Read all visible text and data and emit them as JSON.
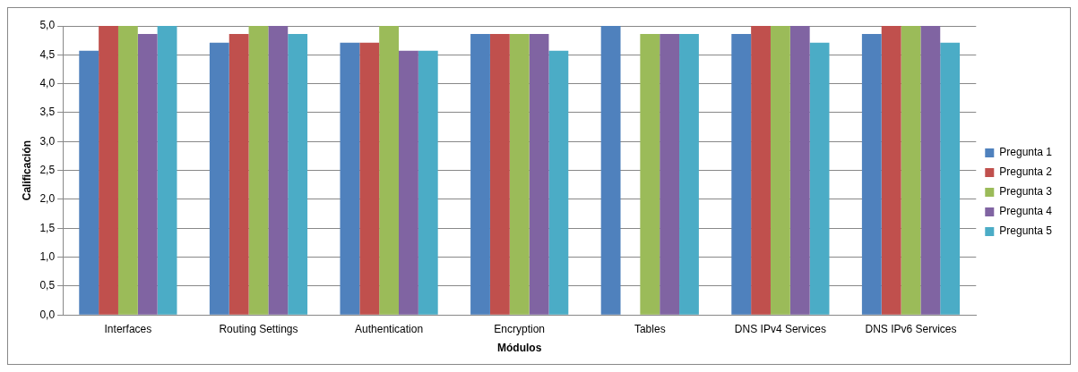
{
  "chart_data": {
    "type": "bar",
    "xlabel": "Módulos",
    "ylabel": "Calificación",
    "categories": [
      "Interfaces",
      "Routing Settings",
      "Authentication",
      "Encryption",
      "Tables",
      "DNS IPv4 Services",
      "DNS IPv6 Services"
    ],
    "series": [
      {
        "name": "Pregunta 1",
        "color": "#4f81bd",
        "values": [
          4.57,
          4.71,
          4.71,
          4.86,
          5,
          4.86,
          4.86
        ]
      },
      {
        "name": "Pregunta 2",
        "color": "#c0504d",
        "values": [
          5,
          4.86,
          4.71,
          4.86,
          null,
          5,
          5
        ]
      },
      {
        "name": "Pregunta 3",
        "color": "#9bbb59",
        "values": [
          5,
          5,
          5,
          4.86,
          4.86,
          5,
          5
        ]
      },
      {
        "name": "Pregunta 4",
        "color": "#8064a2",
        "values": [
          4.86,
          5,
          4.57,
          4.86,
          4.86,
          5,
          5
        ]
      },
      {
        "name": "Pregunta 5",
        "color": "#4bacc6",
        "values": [
          5,
          4.86,
          4.57,
          4.57,
          4.86,
          4.71,
          4.71
        ]
      }
    ],
    "ylim": [
      0,
      5
    ],
    "yticks": [
      {
        "value": 0,
        "label": "0,0"
      },
      {
        "value": 0.5,
        "label": "0,5"
      },
      {
        "value": 1,
        "label": "1,0"
      },
      {
        "value": 1.5,
        "label": "1,5"
      },
      {
        "value": 2,
        "label": "2,0"
      },
      {
        "value": 2.5,
        "label": "2,5"
      },
      {
        "value": 3,
        "label": "3,0"
      },
      {
        "value": 3.5,
        "label": "3,5"
      },
      {
        "value": 4,
        "label": "4,0"
      },
      {
        "value": 4.5,
        "label": "4,5"
      },
      {
        "value": 5,
        "label": "5,0"
      }
    ],
    "grid": "y",
    "legend": "right"
  }
}
